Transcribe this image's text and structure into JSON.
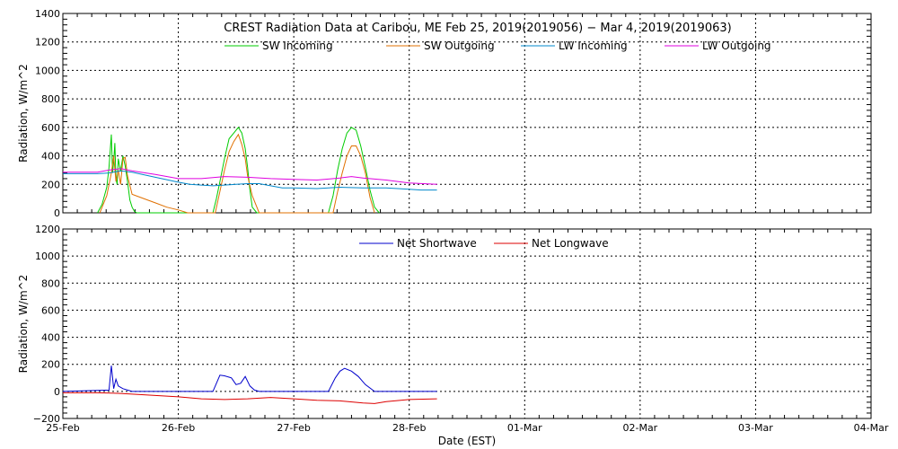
{
  "title": "CREST Radiation Data at Caribou, ME   Feb 25, 2019(2019056) − Mar  4, 2019(2019063)",
  "xlabel": "Date (EST)",
  "chart_data": [
    {
      "type": "line",
      "ylabel": "Radiation, W/m^2",
      "ylim": [
        0,
        1400
      ],
      "yticks": [
        "0",
        "200",
        "400",
        "600",
        "800",
        "1000",
        "1200",
        "1400"
      ],
      "xlim": [
        0,
        7
      ],
      "xticks": [
        "25-Feb",
        "26-Feb",
        "27-Feb",
        "28-Feb",
        "01-Mar",
        "02-Mar",
        "03-Mar",
        "04-Mar"
      ],
      "grid": true,
      "legend_position": "top",
      "x_unit": "days since 25-Feb 00:00 EST",
      "series": [
        {
          "name": "SW Incoming",
          "color": "#00cc00",
          "x": [
            0.3,
            0.34,
            0.38,
            0.4,
            0.42,
            0.43,
            0.44,
            0.45,
            0.46,
            0.47,
            0.48,
            0.5,
            0.52,
            0.54,
            0.56,
            0.58,
            0.6,
            0.62,
            0.64,
            0.66,
            1.3,
            1.33,
            1.36,
            1.4,
            1.44,
            1.48,
            1.52,
            1.55,
            1.58,
            1.6,
            1.62,
            1.64,
            1.68,
            1.72,
            1.76,
            2.3,
            2.34,
            2.38,
            2.42,
            2.46,
            2.5,
            2.54,
            2.58,
            2.62,
            2.66,
            2.7,
            2.74
          ],
          "y": [
            0,
            60,
            180,
            320,
            550,
            280,
            360,
            490,
            250,
            200,
            380,
            290,
            400,
            330,
            220,
            90,
            40,
            10,
            0,
            0,
            0,
            100,
            220,
            380,
            520,
            560,
            600,
            560,
            450,
            320,
            160,
            40,
            0,
            0,
            0,
            0,
            120,
            300,
            450,
            560,
            600,
            580,
            470,
            320,
            160,
            40,
            0
          ]
        },
        {
          "name": "SW Outgoing",
          "color": "#e07000",
          "x": [
            0.32,
            0.38,
            0.42,
            0.44,
            0.46,
            0.48,
            0.5,
            0.52,
            0.54,
            0.56,
            0.6,
            0.7,
            0.8,
            0.9,
            1.0,
            1.08,
            1.32,
            1.36,
            1.4,
            1.44,
            1.48,
            1.52,
            1.55,
            1.58,
            1.6,
            1.64,
            1.7,
            2.34,
            2.38,
            2.42,
            2.46,
            2.5,
            2.54,
            2.58,
            2.62,
            2.66,
            2.7
          ],
          "y": [
            0,
            120,
            280,
            400,
            220,
            300,
            200,
            380,
            390,
            260,
            130,
            100,
            70,
            40,
            20,
            0,
            0,
            150,
            300,
            430,
            500,
            550,
            480,
            380,
            260,
            120,
            0,
            0,
            150,
            280,
            400,
            470,
            470,
            400,
            280,
            110,
            0
          ]
        },
        {
          "name": "LW Incoming",
          "color": "#0088cc",
          "x": [
            0.0,
            0.3,
            0.4,
            0.5,
            0.6,
            0.8,
            1.0,
            1.1,
            1.2,
            1.3,
            1.4,
            1.5,
            1.6,
            1.7,
            1.8,
            1.9,
            2.0,
            2.2,
            2.4,
            2.6,
            2.8,
            3.0,
            3.1,
            3.24
          ],
          "y": [
            275,
            275,
            280,
            295,
            285,
            250,
            215,
            200,
            195,
            190,
            195,
            200,
            205,
            205,
            190,
            175,
            175,
            170,
            180,
            175,
            175,
            165,
            160,
            160
          ]
        },
        {
          "name": "LW Outgoing",
          "color": "#e000e0",
          "x": [
            0.0,
            0.3,
            0.4,
            0.5,
            0.6,
            0.8,
            1.0,
            1.2,
            1.4,
            1.6,
            1.8,
            2.0,
            2.2,
            2.4,
            2.5,
            2.6,
            2.8,
            3.0,
            3.24
          ],
          "y": [
            285,
            285,
            300,
            310,
            295,
            270,
            240,
            240,
            255,
            250,
            240,
            235,
            230,
            245,
            255,
            245,
            230,
            210,
            200
          ]
        }
      ]
    },
    {
      "type": "line",
      "ylabel": "Radiation, W/m^2",
      "ylim": [
        -200,
        1200
      ],
      "yticks": [
        "−200",
        "0",
        "200",
        "400",
        "600",
        "800",
        "1000",
        "1200"
      ],
      "xlim": [
        0,
        7
      ],
      "xticks": [
        "25-Feb",
        "26-Feb",
        "27-Feb",
        "28-Feb",
        "01-Mar",
        "02-Mar",
        "03-Mar",
        "04-Mar"
      ],
      "grid": true,
      "legend_position": "top",
      "x_unit": "days since 25-Feb 00:00 EST",
      "series": [
        {
          "name": "Net Shortwave",
          "color": "#0000cc",
          "x": [
            0.0,
            0.4,
            0.42,
            0.44,
            0.46,
            0.48,
            0.5,
            0.52,
            0.56,
            0.6,
            1.0,
            1.3,
            1.36,
            1.4,
            1.46,
            1.5,
            1.54,
            1.58,
            1.62,
            1.66,
            1.7,
            2.0,
            2.3,
            2.36,
            2.4,
            2.44,
            2.5,
            2.56,
            2.62,
            2.7,
            2.8,
            3.0,
            3.24
          ],
          "y": [
            0,
            10,
            190,
            20,
            90,
            40,
            30,
            20,
            10,
            0,
            0,
            0,
            120,
            115,
            100,
            50,
            60,
            110,
            40,
            10,
            0,
            0,
            0,
            100,
            150,
            170,
            150,
            110,
            50,
            0,
            0,
            0,
            0
          ]
        },
        {
          "name": "Net Longwave",
          "color": "#dd0000",
          "x": [
            0.0,
            0.3,
            0.5,
            0.7,
            0.9,
            1.0,
            1.2,
            1.4,
            1.6,
            1.8,
            2.0,
            2.2,
            2.4,
            2.6,
            2.7,
            2.8,
            3.0,
            3.24
          ],
          "y": [
            -10,
            -10,
            -15,
            -25,
            -35,
            -40,
            -55,
            -60,
            -55,
            -45,
            -55,
            -65,
            -70,
            -85,
            -90,
            -75,
            -60,
            -55
          ]
        }
      ]
    }
  ]
}
